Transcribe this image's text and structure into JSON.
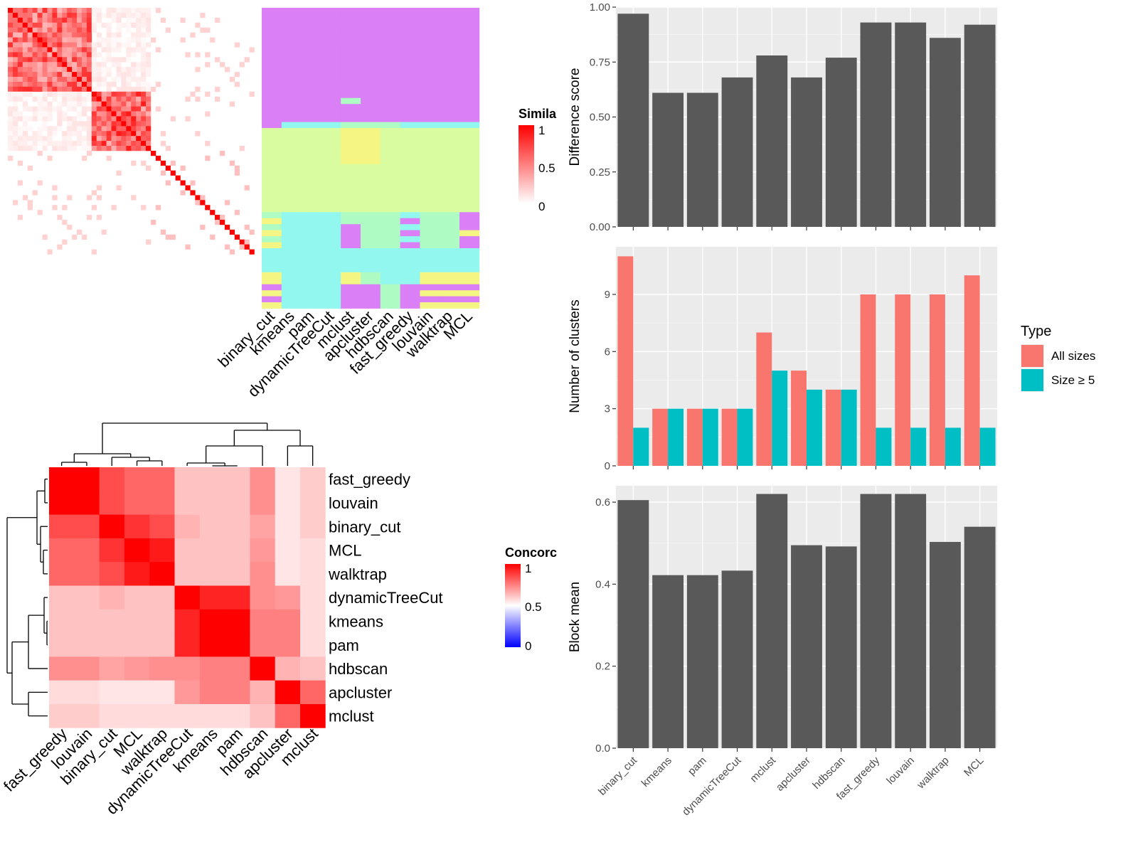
{
  "methods_bar_order": [
    "binary_cut",
    "kmeans",
    "pam",
    "dynamicTreeCut",
    "mclust",
    "apcluster",
    "hdbscan",
    "fast_greedy",
    "louvain",
    "walktrap",
    "MCL"
  ],
  "methods_partition_order": [
    "binary_cut",
    "kmeans",
    "pam",
    "dynamicTreeCut",
    "mclust",
    "apcluster",
    "hdbscan",
    "fast_greedy",
    "louvain",
    "walktrap",
    "MCL"
  ],
  "methods_concordance_order": [
    "fast_greedy",
    "louvain",
    "binary_cut",
    "MCL",
    "walktrap",
    "dynamicTreeCut",
    "kmeans",
    "pam",
    "hdbscan",
    "apcluster",
    "mclust"
  ],
  "colors": {
    "panel_bg": "#EBEBEB",
    "bar_dark": "#595959",
    "all_sizes": "#F8766D",
    "size_ge5": "#00BFC4",
    "partition_colors": [
      "#DA7FF5",
      "#D9FCA0",
      "#92F7EF",
      "#F5F584",
      "#AEFCC4"
    ],
    "heat_high": "#FF0000",
    "heat_mid": "#FFFFFF",
    "heat_low": "#0000FF"
  },
  "similarity_legend": {
    "title": "Simila",
    "ticks": [
      "1",
      "0.5",
      "0"
    ]
  },
  "concordance_legend": {
    "title": "Concorc",
    "ticks": [
      "1",
      "0.5",
      "0"
    ]
  },
  "type_legend": {
    "title": "Type",
    "entries": [
      "All sizes",
      "Size ≥ 5"
    ]
  },
  "chart_data": [
    {
      "type": "heatmap",
      "name_note": "similarity matrix with partition annotation",
      "n_terms": 50,
      "blocks": [
        {
          "start": 0,
          "end": 16,
          "within": 0.55
        },
        {
          "start": 17,
          "end": 28,
          "within": 0.6
        },
        {
          "start": 29,
          "end": 49,
          "within": 0.05
        }
      ],
      "partition_columns": [
        "binary_cut",
        "kmeans",
        "pam",
        "dynamicTreeCut",
        "mclust",
        "apcluster",
        "hdbscan",
        "fast_greedy",
        "louvain",
        "walktrap",
        "MCL"
      ],
      "legend_range": [
        0,
        1
      ]
    },
    {
      "type": "heatmap",
      "title": "",
      "rows": [
        "fast_greedy",
        "louvain",
        "binary_cut",
        "MCL",
        "walktrap",
        "dynamicTreeCut",
        "kmeans",
        "pam",
        "hdbscan",
        "apcluster",
        "mclust"
      ],
      "cols": [
        "fast_greedy",
        "louvain",
        "binary_cut",
        "MCL",
        "walktrap",
        "dynamicTreeCut",
        "kmeans",
        "pam",
        "hdbscan",
        "apcluster",
        "mclust"
      ],
      "values": [
        [
          1.0,
          1.0,
          0.85,
          0.8,
          0.8,
          0.62,
          0.62,
          0.62,
          0.72,
          0.55,
          0.6
        ],
        [
          1.0,
          1.0,
          0.85,
          0.8,
          0.8,
          0.62,
          0.62,
          0.62,
          0.72,
          0.55,
          0.6
        ],
        [
          0.85,
          0.85,
          1.0,
          0.9,
          0.85,
          0.65,
          0.62,
          0.62,
          0.68,
          0.55,
          0.6
        ],
        [
          0.8,
          0.8,
          0.9,
          1.0,
          0.95,
          0.62,
          0.62,
          0.62,
          0.7,
          0.55,
          0.57
        ],
        [
          0.8,
          0.8,
          0.85,
          0.95,
          1.0,
          0.62,
          0.62,
          0.62,
          0.72,
          0.55,
          0.57
        ],
        [
          0.62,
          0.62,
          0.65,
          0.62,
          0.62,
          1.0,
          0.93,
          0.93,
          0.72,
          0.7,
          0.57
        ],
        [
          0.62,
          0.62,
          0.62,
          0.62,
          0.62,
          0.93,
          1.0,
          1.0,
          0.75,
          0.75,
          0.57
        ],
        [
          0.62,
          0.62,
          0.62,
          0.62,
          0.62,
          0.93,
          1.0,
          1.0,
          0.75,
          0.75,
          0.57
        ],
        [
          0.72,
          0.72,
          0.68,
          0.7,
          0.72,
          0.72,
          0.75,
          0.75,
          1.0,
          0.65,
          0.62
        ],
        [
          0.57,
          0.57,
          0.55,
          0.55,
          0.55,
          0.7,
          0.75,
          0.75,
          0.65,
          1.0,
          0.8
        ],
        [
          0.6,
          0.6,
          0.57,
          0.57,
          0.57,
          0.57,
          0.57,
          0.57,
          0.62,
          0.8,
          1.0
        ]
      ],
      "legend_range": [
        0,
        1
      ]
    },
    {
      "type": "bar",
      "categories": [
        "binary_cut",
        "kmeans",
        "pam",
        "dynamicTreeCut",
        "mclust",
        "apcluster",
        "hdbscan",
        "fast_greedy",
        "louvain",
        "walktrap",
        "MCL"
      ],
      "values": [
        0.97,
        0.61,
        0.61,
        0.68,
        0.78,
        0.68,
        0.77,
        0.93,
        0.93,
        0.86,
        0.92
      ],
      "ylabel": "Difference score",
      "ylim": [
        0,
        1.0
      ],
      "yticks": [
        "0.00",
        "0.25",
        "0.50",
        "0.75",
        "1.00"
      ]
    },
    {
      "type": "bar",
      "categories": [
        "binary_cut",
        "kmeans",
        "pam",
        "dynamicTreeCut",
        "mclust",
        "apcluster",
        "hdbscan",
        "fast_greedy",
        "louvain",
        "walktrap",
        "MCL"
      ],
      "series": [
        {
          "name": "All sizes",
          "values": [
            11,
            3,
            3,
            3,
            7,
            5,
            4,
            9,
            9,
            9,
            10
          ]
        },
        {
          "name": "Size ≥ 5",
          "values": [
            2,
            3,
            3,
            3,
            5,
            4,
            4,
            2,
            2,
            2,
            2
          ]
        }
      ],
      "ylabel": "Number of clusters",
      "ylim": [
        0,
        11.5
      ],
      "yticks": [
        "0",
        "3",
        "6",
        "9"
      ]
    },
    {
      "type": "bar",
      "categories": [
        "binary_cut",
        "kmeans",
        "pam",
        "dynamicTreeCut",
        "mclust",
        "apcluster",
        "hdbscan",
        "fast_greedy",
        "louvain",
        "walktrap",
        "MCL"
      ],
      "values": [
        0.605,
        0.422,
        0.422,
        0.433,
        0.62,
        0.495,
        0.492,
        0.62,
        0.62,
        0.503,
        0.54
      ],
      "ylabel": "Block mean",
      "ylim": [
        0,
        0.64
      ],
      "yticks": [
        "0.0",
        "0.2",
        "0.4",
        "0.6"
      ]
    }
  ]
}
